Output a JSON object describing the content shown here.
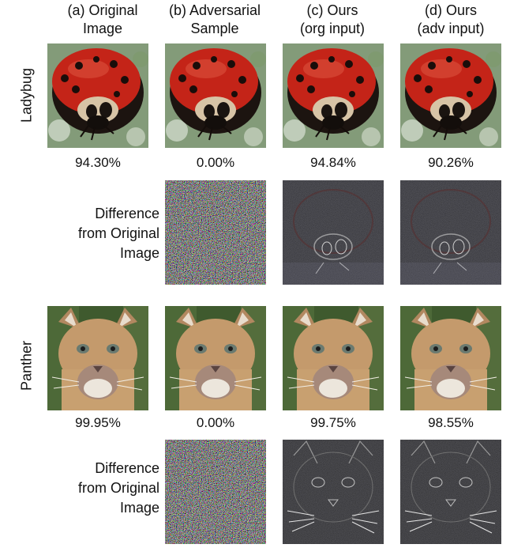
{
  "columns": [
    {
      "line1": "(a) Original",
      "line2": "Image"
    },
    {
      "line1": "(b) Adversarial",
      "line2": "Sample"
    },
    {
      "line1": "(c) Ours",
      "line2": "(org input)"
    },
    {
      "line1": "(d)  Ours",
      "line2": "(adv input)"
    }
  ],
  "rows": [
    {
      "label": "Ladybug",
      "scores": [
        "94.30%",
        "0.00%",
        "94.84%",
        "90.26%"
      ]
    },
    {
      "label": "Panther",
      "scores": [
        "99.95%",
        "0.00%",
        "99.75%",
        "98.55%"
      ]
    }
  ],
  "difference_label": {
    "line1": "Difference",
    "line2": "from Original",
    "line3": "Image"
  }
}
